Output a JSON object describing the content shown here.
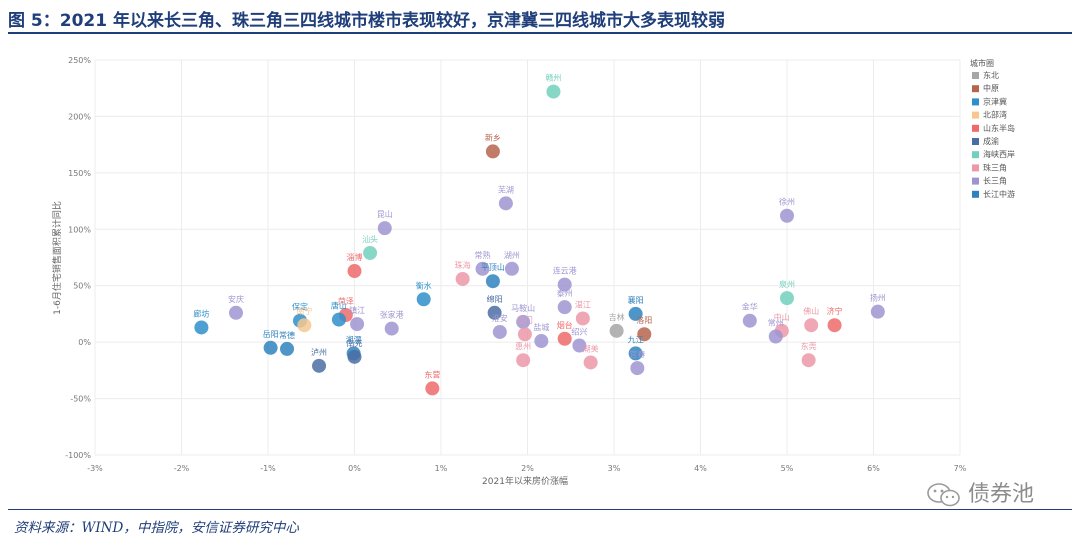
{
  "title": "图 5：2021 年以来长三角、珠三角三四线城市楼市表现较好，京津冀三四线城市大多表现较弱",
  "source": "资料来源：WIND，中指院，安信证券研究中心",
  "watermark": "债券池",
  "chart_data": {
    "type": "scatter",
    "xlabel": "2021年以来房价涨幅",
    "ylabel": "1-6月住宅销售面积累计同比",
    "xlim": [
      -0.03,
      0.07
    ],
    "ylim": [
      -1.0,
      2.5
    ],
    "x_ticks": [
      "-3%",
      "-2%",
      "-1%",
      "0%",
      "1%",
      "2%",
      "3%",
      "4%",
      "5%",
      "6%",
      "7%"
    ],
    "y_ticks": [
      "250%",
      "200%",
      "150%",
      "100%",
      "50%",
      "0%",
      "-50%",
      "-100%"
    ],
    "grid": true,
    "legend_title": "城市圈",
    "legend_position": "right",
    "groups": [
      {
        "name": "东北",
        "color": "#a6a6a6"
      },
      {
        "name": "中原",
        "color": "#b5654c"
      },
      {
        "name": "京津冀",
        "color": "#2f8fcb"
      },
      {
        "name": "北部湾",
        "color": "#f6c890"
      },
      {
        "name": "山东半岛",
        "color": "#ee6a6a"
      },
      {
        "name": "成渝",
        "color": "#4a6ea3"
      },
      {
        "name": "海峡西岸",
        "color": "#72d0bd"
      },
      {
        "name": "珠三角",
        "color": "#ec98a9"
      },
      {
        "name": "长三角",
        "color": "#9f94d1"
      },
      {
        "name": "长江中游",
        "color": "#2f82be"
      }
    ],
    "points": [
      {
        "name": "赣州",
        "group": "海峡西岸",
        "x": 0.023,
        "y": 2.22
      },
      {
        "name": "新乡",
        "group": "中原",
        "x": 0.016,
        "y": 1.69
      },
      {
        "name": "芜湖",
        "group": "长三角",
        "x": 0.0175,
        "y": 1.23
      },
      {
        "name": "徐州",
        "group": "长三角",
        "x": 0.05,
        "y": 1.12
      },
      {
        "name": "昆山",
        "group": "长三角",
        "x": 0.0035,
        "y": 1.01
      },
      {
        "name": "汕头",
        "group": "海峡西岸",
        "x": 0.0018,
        "y": 0.79
      },
      {
        "name": "淄博",
        "group": "山东半岛",
        "x": 0.0,
        "y": 0.63
      },
      {
        "name": "珠海",
        "group": "珠三角",
        "x": 0.0125,
        "y": 0.56
      },
      {
        "name": "常熟",
        "group": "长三角",
        "x": 0.0148,
        "y": 0.65
      },
      {
        "name": "湖州",
        "group": "长三角",
        "x": 0.0182,
        "y": 0.65
      },
      {
        "name": "平顶山",
        "group": "长江中游",
        "x": 0.016,
        "y": 0.54
      },
      {
        "name": "连云港",
        "group": "长三角",
        "x": 0.0243,
        "y": 0.51
      },
      {
        "name": "泉州",
        "group": "海峡西岸",
        "x": 0.05,
        "y": 0.39
      },
      {
        "name": "扬州",
        "group": "长三角",
        "x": 0.0605,
        "y": 0.27
      },
      {
        "name": "衡水",
        "group": "京津冀",
        "x": 0.008,
        "y": 0.38
      },
      {
        "name": "绵阳",
        "group": "成渝",
        "x": 0.0162,
        "y": 0.26
      },
      {
        "name": "泰州",
        "group": "长三角",
        "x": 0.0243,
        "y": 0.31
      },
      {
        "name": "湛江",
        "group": "珠三角",
        "x": 0.0264,
        "y": 0.21
      },
      {
        "name": "襄阳",
        "group": "长江中游",
        "x": 0.0325,
        "y": 0.25
      },
      {
        "name": "廊坊",
        "group": "京津冀",
        "x": -0.0177,
        "y": 0.13
      },
      {
        "name": "安庆",
        "group": "长三角",
        "x": -0.0137,
        "y": 0.26
      },
      {
        "name": "保定",
        "group": "京津冀",
        "x": -0.0063,
        "y": 0.19
      },
      {
        "name": "南宁",
        "group": "北部湾",
        "x": -0.0058,
        "y": 0.15
      },
      {
        "name": "菏泽",
        "group": "山东半岛",
        "x": -0.001,
        "y": 0.24
      },
      {
        "name": "唐山",
        "group": "京津冀",
        "x": -0.0018,
        "y": 0.2
      },
      {
        "name": "镇江",
        "group": "长三角",
        "x": 0.0003,
        "y": 0.16
      },
      {
        "name": "张家港",
        "group": "长三角",
        "x": 0.0043,
        "y": 0.12
      },
      {
        "name": "淮安",
        "group": "长三角",
        "x": 0.0168,
        "y": 0.09
      },
      {
        "name": "马鞍山",
        "group": "长三角",
        "x": 0.0195,
        "y": 0.18
      },
      {
        "name": "江门",
        "group": "珠三角",
        "x": 0.0197,
        "y": 0.07
      },
      {
        "name": "盐城",
        "group": "长三角",
        "x": 0.0216,
        "y": 0.01
      },
      {
        "name": "烟台",
        "group": "山东半岛",
        "x": 0.0243,
        "y": 0.03
      },
      {
        "name": "绍兴",
        "group": "长三角",
        "x": 0.026,
        "y": -0.03
      },
      {
        "name": "吉林",
        "group": "东北",
        "x": 0.0303,
        "y": 0.1
      },
      {
        "name": "洛阳",
        "group": "中原",
        "x": 0.0335,
        "y": 0.07
      },
      {
        "name": "金华",
        "group": "长三角",
        "x": 0.0457,
        "y": 0.19
      },
      {
        "name": "中山",
        "group": "珠三角",
        "x": 0.0494,
        "y": 0.1
      },
      {
        "name": "常州",
        "group": "长三角",
        "x": 0.0487,
        "y": 0.05
      },
      {
        "name": "佛山",
        "group": "珠三角",
        "x": 0.0528,
        "y": 0.15
      },
      {
        "name": "济宁",
        "group": "山东半岛",
        "x": 0.0555,
        "y": 0.15
      },
      {
        "name": "岳阳",
        "group": "长江中游",
        "x": -0.0097,
        "y": -0.05
      },
      {
        "name": "常德",
        "group": "长江中游",
        "x": -0.0078,
        "y": -0.06
      },
      {
        "name": "泸州",
        "group": "成渝",
        "x": -0.0041,
        "y": -0.21
      },
      {
        "name": "湘潭",
        "group": "长江中游",
        "x": -0.0001,
        "y": -0.1
      },
      {
        "name": "南充",
        "group": "成渝",
        "x": 0.0,
        "y": -0.13
      },
      {
        "name": "惠州",
        "group": "珠三角",
        "x": 0.0195,
        "y": -0.16
      },
      {
        "name": "湖美",
        "group": "珠三角",
        "x": 0.0273,
        "y": -0.18
      },
      {
        "name": "九江",
        "group": "长江中游",
        "x": 0.0325,
        "y": -0.1
      },
      {
        "name": "宜春",
        "group": "长三角",
        "x": 0.0327,
        "y": -0.23
      },
      {
        "name": "东莞",
        "group": "珠三角",
        "x": 0.0525,
        "y": -0.16
      },
      {
        "name": "东营",
        "group": "山东半岛",
        "x": 0.009,
        "y": -0.41
      }
    ]
  }
}
